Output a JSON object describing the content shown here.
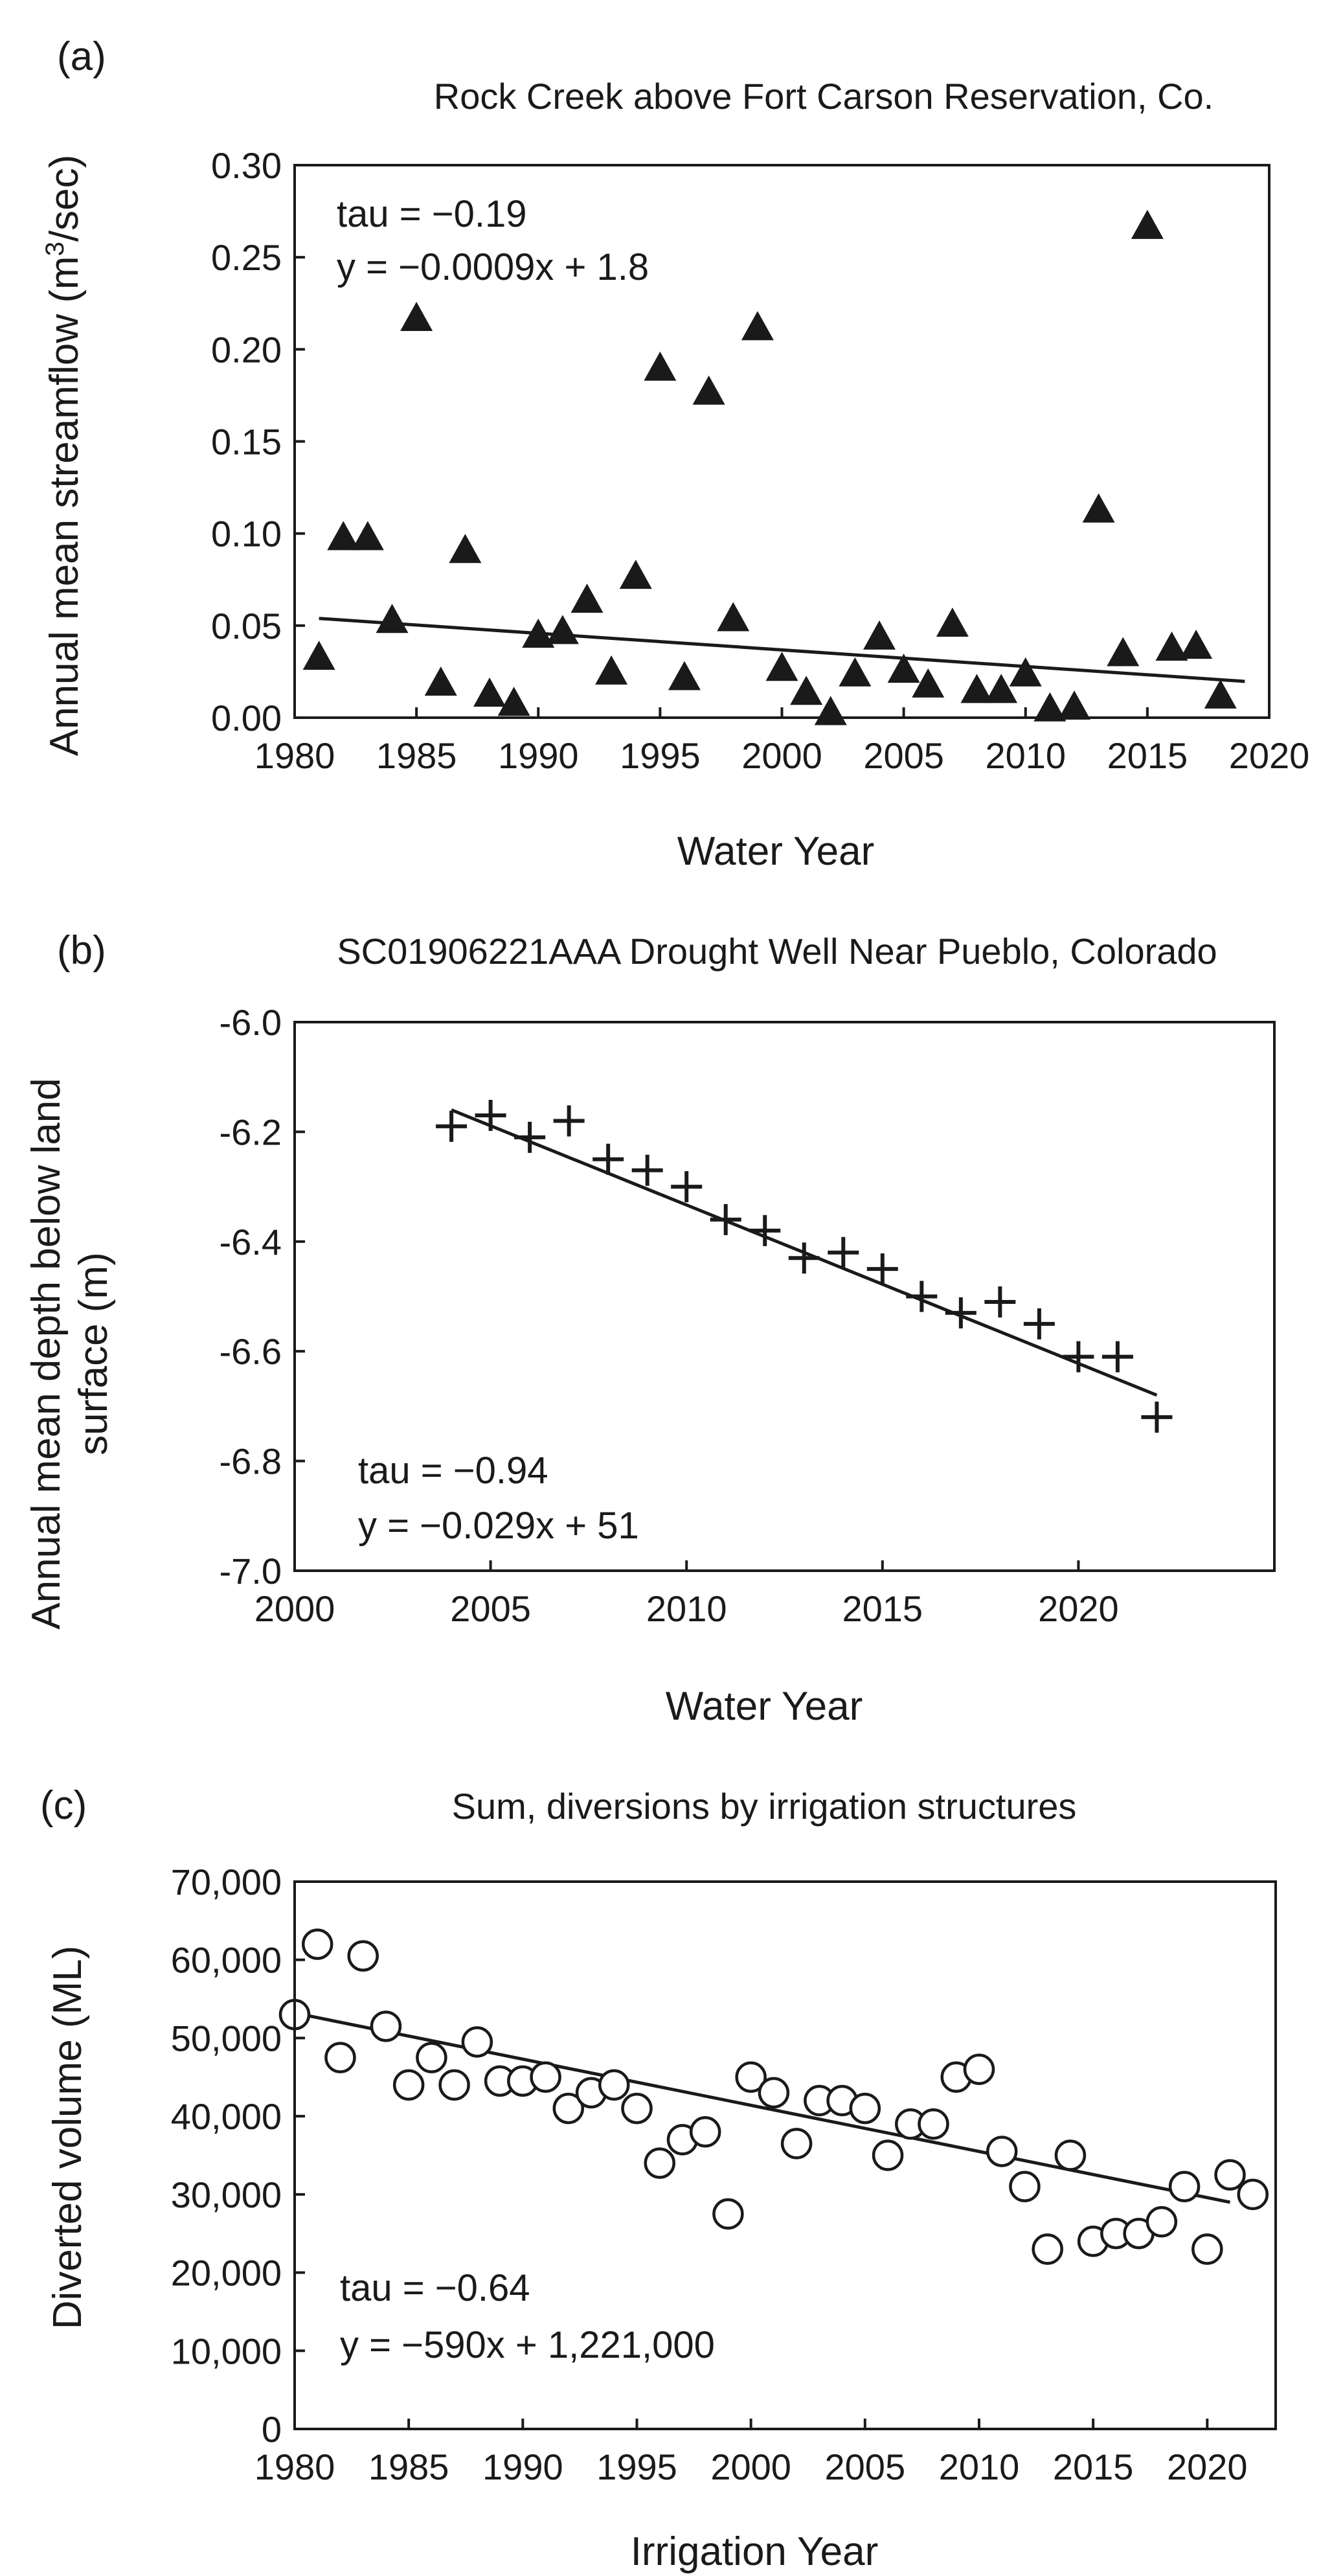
{
  "chart_data": [
    {
      "panel": "(a)",
      "type": "scatter",
      "title": "Rock Creek above Fort Carson Reservation, Co.",
      "xlabel": "Water Year",
      "ylabel": "Annual mean streamflow (m³/sec)",
      "xlim": [
        1980,
        2020
      ],
      "ylim": [
        0,
        0.3
      ],
      "xticks": [
        1980,
        1985,
        1990,
        1995,
        2000,
        2005,
        2010,
        2015,
        2020
      ],
      "yticks": [
        "0.00",
        "0.05",
        "0.10",
        "0.15",
        "0.20",
        "0.25",
        "0.30"
      ],
      "marker": "triangle",
      "x": [
        1981,
        1982,
        1983,
        1984,
        1985,
        1986,
        1987,
        1988,
        1989,
        1990,
        1991,
        1992,
        1993,
        1994,
        1995,
        1996,
        1997,
        1998,
        1999,
        2000,
        2001,
        2002,
        2003,
        2004,
        2005,
        2006,
        2007,
        2008,
        2009,
        2010,
        2011,
        2012,
        2013,
        2014,
        2015,
        2016,
        2017,
        2018
      ],
      "y": [
        0.033,
        0.098,
        0.098,
        0.053,
        0.217,
        0.019,
        0.091,
        0.013,
        0.008,
        0.045,
        0.047,
        0.064,
        0.025,
        0.077,
        0.19,
        0.022,
        0.177,
        0.054,
        0.212,
        0.027,
        0.014,
        0.003,
        0.024,
        0.044,
        0.026,
        0.018,
        0.051,
        0.015,
        0.015,
        0.024,
        0.005,
        0.006,
        0.113,
        0.035,
        0.267,
        0.038,
        0.039,
        0.012
      ],
      "trendline": {
        "x": [
          1981,
          2019
        ],
        "y": [
          0.0539,
          0.0197
        ]
      },
      "annotations": [
        "tau = −0.19",
        "y = −0.0009x + 1.8"
      ]
    },
    {
      "panel": "(b)",
      "type": "scatter",
      "title": "SC01906221AAA Drought Well Near Pueblo, Colorado",
      "xlabel": "Water Year",
      "ylabel": "Annual mean depth below land surface (m)",
      "xlim": [
        2000,
        2025
      ],
      "ylim": [
        -7.0,
        -6.0
      ],
      "xticks": [
        2000,
        2005,
        2010,
        2015,
        2020
      ],
      "yticks": [
        "-7.0",
        "-6.8",
        "-6.6",
        "-6.4",
        "-6.2",
        "-6.0"
      ],
      "marker": "plus",
      "x": [
        2004,
        2005,
        2006,
        2007,
        2008,
        2009,
        2010,
        2011,
        2012,
        2013,
        2014,
        2015,
        2016,
        2017,
        2018,
        2019,
        2020,
        2021,
        2022
      ],
      "y": [
        -6.19,
        -6.17,
        -6.21,
        -6.18,
        -6.25,
        -6.27,
        -6.3,
        -6.36,
        -6.38,
        -6.43,
        -6.42,
        -6.45,
        -6.5,
        -6.53,
        -6.51,
        -6.55,
        -6.61,
        -6.61,
        -6.72
      ],
      "trendline": {
        "x": [
          2004,
          2022
        ],
        "y": [
          -6.16,
          -6.68
        ]
      },
      "annotations": [
        "tau = −0.94",
        "y = −0.029x + 51"
      ]
    },
    {
      "panel": "(c)",
      "type": "scatter",
      "title": "Sum, diversions by irrigation structures",
      "xlabel": "Irrigation Year",
      "ylabel": "Diverted volume (ML)",
      "xlim": [
        1980,
        2023
      ],
      "ylim": [
        0,
        70000
      ],
      "xticks": [
        1980,
        1985,
        1990,
        1995,
        2000,
        2005,
        2010,
        2015,
        2020
      ],
      "yticks": [
        "0",
        "10,000",
        "20,000",
        "30,000",
        "40,000",
        "50,000",
        "60,000",
        "70,000"
      ],
      "marker": "open-circle",
      "x": [
        1980,
        1981,
        1982,
        1983,
        1984,
        1985,
        1986,
        1987,
        1988,
        1989,
        1990,
        1991,
        1992,
        1993,
        1994,
        1995,
        1996,
        1997,
        1998,
        1999,
        2000,
        2001,
        2002,
        2003,
        2004,
        2005,
        2006,
        2007,
        2008,
        2009,
        2010,
        2011,
        2012,
        2013,
        2014,
        2015,
        2016,
        2017,
        2018,
        2019,
        2020,
        2021,
        2022
      ],
      "y": [
        53000,
        62000,
        47500,
        60500,
        51500,
        44000,
        47500,
        44000,
        49500,
        44500,
        44500,
        45000,
        41000,
        43000,
        44000,
        41000,
        34000,
        37000,
        38000,
        27500,
        45000,
        43000,
        36500,
        42000,
        42000,
        41000,
        35000,
        39000,
        39000,
        45000,
        46000,
        35500,
        31000,
        23000,
        35000,
        24000,
        25000,
        25000,
        26500,
        31000,
        23000,
        32500,
        30000
      ],
      "trendline": {
        "x": [
          1980,
          2021
        ],
        "y": [
          53200,
          29000
        ]
      },
      "annotations": [
        "tau = −0.64",
        "y = −590x + 1,221,000"
      ]
    }
  ]
}
